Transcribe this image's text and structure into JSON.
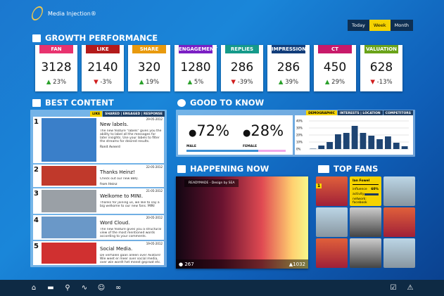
{
  "brand": {
    "name": "Media Injection®"
  },
  "period": {
    "options": [
      "Today",
      "Week",
      "Month"
    ],
    "selected": "Week"
  },
  "growth": {
    "title": "GROWTH PERFORMANCE",
    "cards": [
      {
        "label": "FAN",
        "color": "#e8336f",
        "value": "3128",
        "change": "23%",
        "dir": "up"
      },
      {
        "label": "LIKE",
        "color": "#b31b1b",
        "value": "2140",
        "change": "-3%",
        "dir": "down"
      },
      {
        "label": "SHARE",
        "color": "#e89a0e",
        "value": "320",
        "change": "19%",
        "dir": "up"
      },
      {
        "label": "ENGAGEMENT",
        "color": "#7b1fc4",
        "value": "1280",
        "change": "5%",
        "dir": "up"
      },
      {
        "label": "REPLIES",
        "color": "#159a8a",
        "value": "286",
        "change": "-39%",
        "dir": "down"
      },
      {
        "label": "IMPRESSION",
        "color": "#123d7a",
        "value": "286",
        "change": "39%",
        "dir": "up"
      },
      {
        "label": "CT",
        "color": "#c81a6a",
        "value": "450",
        "change": "29%",
        "dir": "up"
      },
      {
        "label": "VALUATION",
        "color": "#6aa319",
        "value": "628",
        "change": "-13%",
        "dir": "down"
      }
    ]
  },
  "best": {
    "title": "BEST CONTENT",
    "tabs": [
      "LIKE",
      "SHARED | ENGAGED | RESPONSE"
    ],
    "items": [
      {
        "n": "1",
        "title": "New labels.",
        "desc": "The new feature \"labels\" gives you the ability to label all the messages for later insights. Use your labels to filter the streams for desired results.",
        "date": "29-05-2012",
        "author": "Ronit Avnerd"
      },
      {
        "n": "2",
        "title": "Thanks Heinz!",
        "desc": "Check out our new BBQ.",
        "date": "22-05-2012",
        "author": "from Heinz"
      },
      {
        "n": "3",
        "title": "Welkome to MINI.",
        "desc": "Thanks for joining us, we like to say a big welkome to our new fans. MINI",
        "date": "21-05-2012",
        "author": ""
      },
      {
        "n": "4",
        "title": "Word Cloud.",
        "desc": "The new feature gives you a structural view of the most mentioned words according to your comments.",
        "date": "20-05-2012",
        "author": ""
      },
      {
        "n": "5",
        "title": "Social Media.",
        "desc": "De verhalen gaan alleen over Avatars! Wie weet er meer over social media, over wie wordt het meest gepraat etc.",
        "date": "19-05-2012",
        "author": ""
      }
    ]
  },
  "good": {
    "title": "GOOD TO KNOW",
    "tabs": [
      "DEMOGRAPHIC",
      "INTERESTS | LOCATION",
      "COMPETITORS"
    ],
    "male_pct": "72%",
    "female_pct": "28%",
    "male_label": "MALE",
    "female_label": "FEMALE",
    "male_share": 72
  },
  "chart_data": {
    "type": "bar",
    "ylim": [
      0,
      40
    ],
    "yticks": [
      "0%",
      "10%",
      "20%",
      "30%",
      "40%"
    ],
    "values": [
      0.5,
      5,
      10,
      21,
      23,
      33,
      23,
      19,
      14,
      18,
      9,
      4
    ],
    "grid": true,
    "bar_color": "#1e4472"
  },
  "happening": {
    "title": "HAPPENING NOW",
    "caption": "READYMADE - Design by SEA",
    "comments": "267",
    "likes": "1032"
  },
  "fans": {
    "title": "TOP FANS",
    "rank": "1",
    "name": "Ian Fowel",
    "stat1_label": "influence",
    "stat1_value": "60%",
    "stat2_label": "activity",
    "source": "network: facebook"
  }
}
